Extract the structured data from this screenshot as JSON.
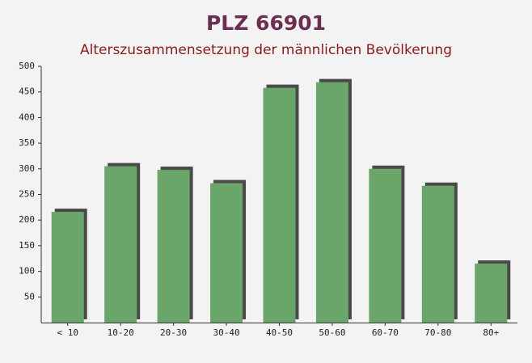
{
  "chart_data": {
    "type": "bar",
    "title": "PLZ 66901",
    "subtitle": "Alterszusammensetzung der männlichen Bevölkerung",
    "categories": [
      "< 10",
      "10-20",
      "20-30",
      "30-40",
      "40-50",
      "50-60",
      "60-70",
      "70-80",
      "80+"
    ],
    "values": [
      216,
      305,
      298,
      272,
      458,
      469,
      300,
      267,
      115
    ],
    "color": "#6aa66a",
    "ylim": [
      0,
      500
    ],
    "yticks": [
      50,
      100,
      150,
      200,
      250,
      300,
      350,
      400,
      450,
      500
    ],
    "grid": false
  }
}
